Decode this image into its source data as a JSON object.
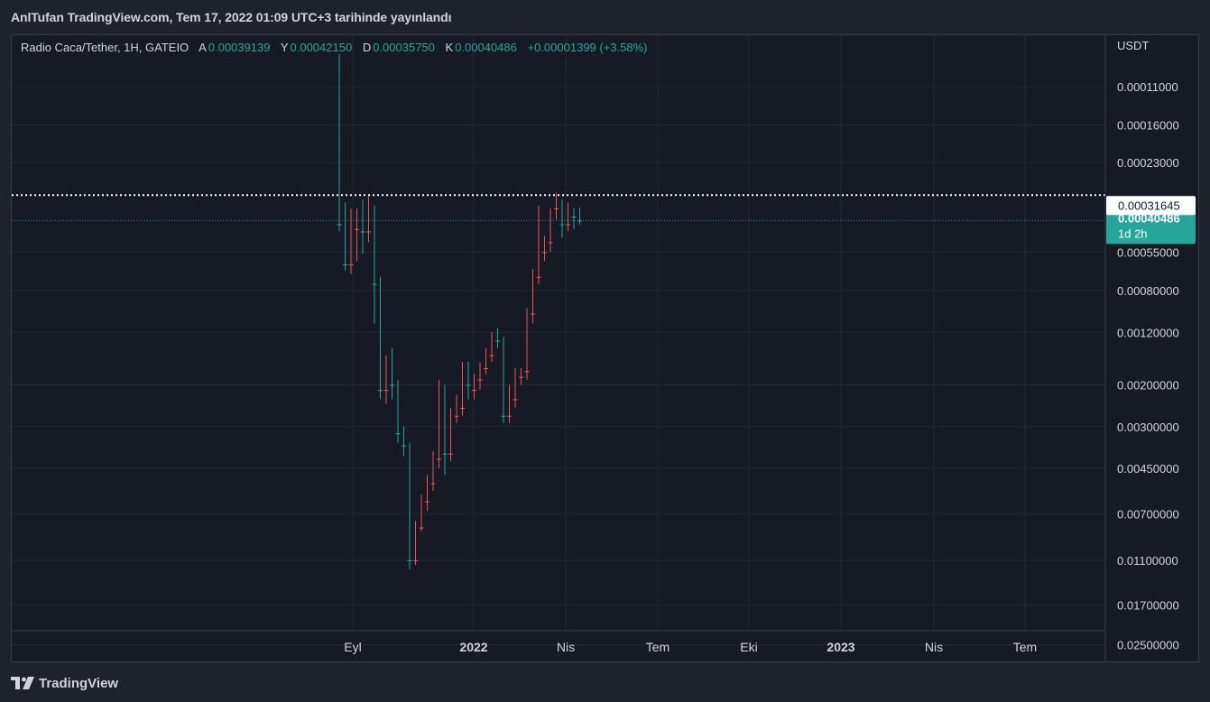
{
  "header": {
    "publish_text": "AnlTufan TradingView.com, Tem 17, 2022 01:09 UTC+3 tarihinde yayınlandı"
  },
  "legend": {
    "symbol": "Radio Caca/Tether, 1H, GATEIO",
    "open_label": "A",
    "open_value": "0.00039139",
    "high_label": "Y",
    "high_value": "0.00042150",
    "low_label": "D",
    "low_value": "0.00035750",
    "close_label": "K",
    "close_value": "0.00040486",
    "change": "+0.00001399 (+3.58%)"
  },
  "footer": {
    "brand": "TradingView"
  },
  "colors": {
    "up": "#26a69a",
    "down": "#ef5350",
    "background": "#161a25",
    "grid": "#242833",
    "text": "#d1d4dc"
  },
  "chart_data": {
    "type": "candlestick",
    "y_scale": "log",
    "currency_label": "USDT",
    "y_ticks": [
      "0.02500000",
      "0.01700000",
      "0.01100000",
      "0.00700000",
      "0.00450000",
      "0.00300000",
      "0.00200000",
      "0.00120000",
      "0.00080000",
      "0.00055000",
      "0.00023000",
      "0.00016000",
      "0.00011000"
    ],
    "x_ticks": [
      {
        "label": "Eyl",
        "bold": false
      },
      {
        "label": "2022",
        "bold": true
      },
      {
        "label": "Nis",
        "bold": false
      },
      {
        "label": "Tem",
        "bold": false
      },
      {
        "label": "Eki",
        "bold": false
      },
      {
        "label": "2023",
        "bold": true
      },
      {
        "label": "Nis",
        "bold": false
      },
      {
        "label": "Tem",
        "bold": false
      }
    ],
    "last_price": {
      "value": "0.00040486",
      "countdown": "1d 2h"
    },
    "horizontal_line": {
      "value": "0.00031645"
    },
    "candles": [
      {
        "o": 8e-05,
        "h": 0.00045,
        "l": 8e-05,
        "c": 0.00042
      },
      {
        "o": 0.00042,
        "h": 0.00066,
        "l": 0.00034,
        "c": 0.00062
      },
      {
        "o": 0.00062,
        "h": 0.00068,
        "l": 0.00036,
        "c": 0.00044
      },
      {
        "o": 0.00044,
        "h": 0.0006,
        "l": 0.00036,
        "c": 0.00039
      },
      {
        "o": 0.0004,
        "h": 0.00056,
        "l": 0.00033,
        "c": 0.00045
      },
      {
        "o": 0.00045,
        "h": 0.0005,
        "l": 0.00032,
        "c": 0.00035
      },
      {
        "o": 0.00035,
        "h": 0.0011,
        "l": 0.00035,
        "c": 0.00075
      },
      {
        "o": 0.00075,
        "h": 0.0023,
        "l": 0.0007,
        "c": 0.0021
      },
      {
        "o": 0.0021,
        "h": 0.0024,
        "l": 0.0015,
        "c": 0.00165
      },
      {
        "o": 0.00165,
        "h": 0.0023,
        "l": 0.0014,
        "c": 0.002
      },
      {
        "o": 0.002,
        "h": 0.0035,
        "l": 0.0019,
        "c": 0.0032
      },
      {
        "o": 0.0032,
        "h": 0.004,
        "l": 0.003,
        "c": 0.0036
      },
      {
        "o": 0.0036,
        "h": 0.012,
        "l": 0.0035,
        "c": 0.011
      },
      {
        "o": 0.011,
        "h": 0.0115,
        "l": 0.0075,
        "c": 0.008
      },
      {
        "o": 0.008,
        "h": 0.0083,
        "l": 0.0058,
        "c": 0.0062
      },
      {
        "o": 0.0062,
        "h": 0.0068,
        "l": 0.0048,
        "c": 0.0052
      },
      {
        "o": 0.0052,
        "h": 0.0056,
        "l": 0.0038,
        "c": 0.0041
      },
      {
        "o": 0.0041,
        "h": 0.0045,
        "l": 0.0019,
        "c": 0.0021
      },
      {
        "o": 0.0021,
        "h": 0.0048,
        "l": 0.002,
        "c": 0.0039
      },
      {
        "o": 0.0039,
        "h": 0.0042,
        "l": 0.0025,
        "c": 0.0027
      },
      {
        "o": 0.0027,
        "h": 0.0029,
        "l": 0.0022,
        "c": 0.0025
      },
      {
        "o": 0.0025,
        "h": 0.0027,
        "l": 0.0016,
        "c": 0.0018
      },
      {
        "o": 0.0018,
        "h": 0.0023,
        "l": 0.0016,
        "c": 0.002
      },
      {
        "o": 0.0021,
        "h": 0.0023,
        "l": 0.0018,
        "c": 0.0019
      },
      {
        "o": 0.0019,
        "h": 0.0021,
        "l": 0.0016,
        "c": 0.0017
      },
      {
        "o": 0.0017,
        "h": 0.0018,
        "l": 0.0014,
        "c": 0.0015
      },
      {
        "o": 0.0015,
        "h": 0.0016,
        "l": 0.0012,
        "c": 0.00125
      },
      {
        "o": 0.00125,
        "h": 0.0014,
        "l": 0.00115,
        "c": 0.0013
      },
      {
        "o": 0.0013,
        "h": 0.0029,
        "l": 0.00125,
        "c": 0.0027
      },
      {
        "o": 0.0027,
        "h": 0.0029,
        "l": 0.002,
        "c": 0.0023
      },
      {
        "o": 0.0023,
        "h": 0.0025,
        "l": 0.0017,
        "c": 0.00185
      },
      {
        "o": 0.00185,
        "h": 0.002,
        "l": 0.0017,
        "c": 0.00175
      },
      {
        "o": 0.00175,
        "h": 0.0019,
        "l": 0.00095,
        "c": 0.001
      },
      {
        "o": 0.001,
        "h": 0.0011,
        "l": 0.00065,
        "c": 0.0007
      },
      {
        "o": 0.0007,
        "h": 0.00075,
        "l": 0.00035,
        "c": 0.00055
      },
      {
        "o": 0.00055,
        "h": 0.0006,
        "l": 0.00047,
        "c": 0.0005
      },
      {
        "o": 0.0005,
        "h": 0.00055,
        "l": 0.00036,
        "c": 0.00036
      },
      {
        "o": 0.00036,
        "h": 0.0004,
        "l": 0.00031,
        "c": 0.00033
      },
      {
        "o": 0.00033,
        "h": 0.00048,
        "l": 0.00033,
        "c": 0.00042
      },
      {
        "o": 0.00042,
        "h": 0.00045,
        "l": 0.00034,
        "c": 0.00037
      },
      {
        "o": 0.00037,
        "h": 0.00044,
        "l": 0.00036,
        "c": 0.00039
      },
      {
        "o": 0.00039139,
        "h": 0.0004215,
        "l": 0.0003575,
        "c": 0.00040486
      }
    ]
  }
}
